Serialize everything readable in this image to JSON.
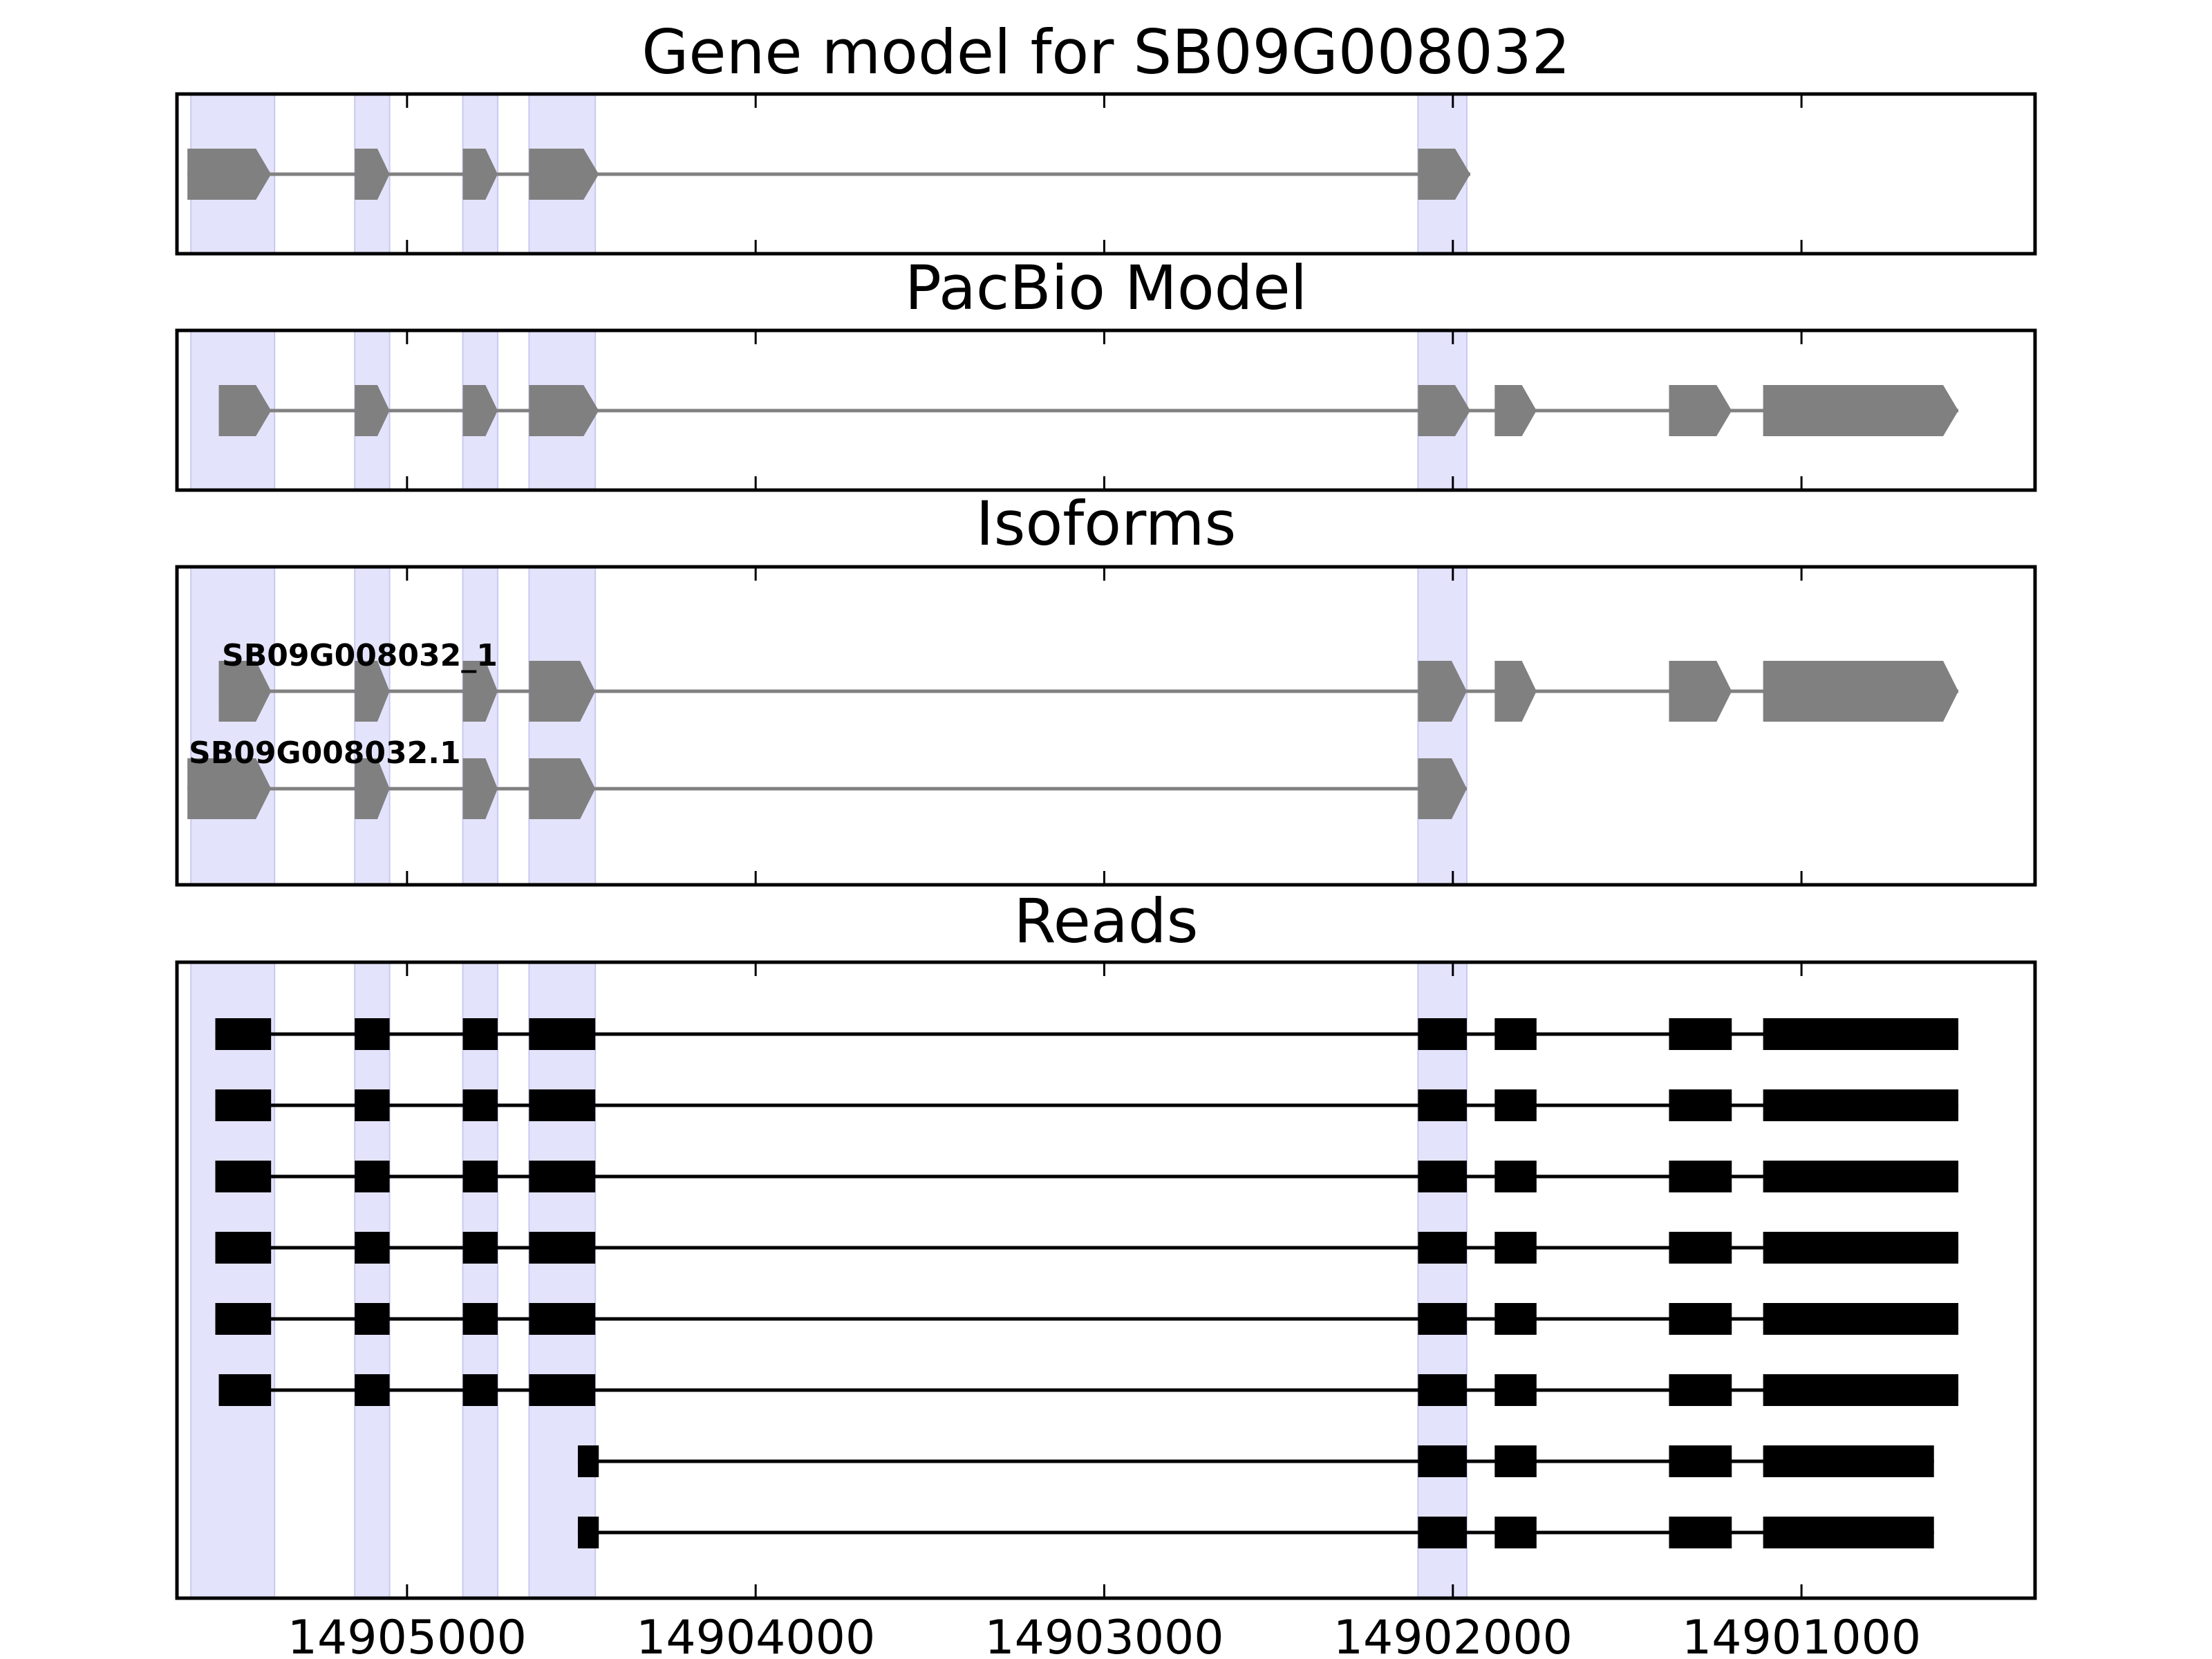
{
  "figure": {
    "panels": [
      {
        "id": "gene-model",
        "title": "Gene model for SB09G008032"
      },
      {
        "id": "pacbio-model",
        "title": "PacBio Model"
      },
      {
        "id": "isoforms",
        "title": "Isoforms"
      },
      {
        "id": "reads",
        "title": "Reads"
      }
    ],
    "x_axis": {
      "reversed": true,
      "range": [
        14905660,
        14900330
      ],
      "ticks": [
        14905000,
        14904000,
        14903000,
        14902000,
        14901000
      ],
      "tick_labels": [
        "14905000",
        "14904000",
        "14903000",
        "14902000",
        "14901000"
      ]
    },
    "highlight_color": "#e3e3fb",
    "exon_colors": {
      "model": "#808080",
      "read": "#000000"
    },
    "highlights": [
      [
        14905620,
        14905380
      ],
      [
        14905150,
        14905050
      ],
      [
        14904840,
        14904740
      ],
      [
        14904650,
        14904460
      ],
      [
        14902100,
        14901960
      ]
    ],
    "gene_model": {
      "exons": [
        [
          14905630,
          14905390
        ],
        [
          14905150,
          14905050
        ],
        [
          14904840,
          14904740
        ],
        [
          14904650,
          14904450
        ],
        [
          14902100,
          14901950
        ]
      ]
    },
    "pacbio_model": {
      "exons": [
        [
          14905540,
          14905390
        ],
        [
          14905150,
          14905050
        ],
        [
          14904840,
          14904740
        ],
        [
          14904650,
          14904450
        ],
        [
          14902100,
          14901950
        ],
        [
          14901880,
          14901760
        ],
        [
          14901380,
          14901200
        ],
        [
          14901110,
          14900550
        ]
      ]
    },
    "isoforms": [
      {
        "name": "SB09G008032_1",
        "exons": [
          [
            14905540,
            14905390
          ],
          [
            14905150,
            14905050
          ],
          [
            14904840,
            14904740
          ],
          [
            14904650,
            14904460
          ],
          [
            14902100,
            14901960
          ],
          [
            14901880,
            14901760
          ],
          [
            14901380,
            14901200
          ],
          [
            14901110,
            14900550
          ]
        ]
      },
      {
        "name": "SB09G008032.1",
        "exons": [
          [
            14905630,
            14905390
          ],
          [
            14905150,
            14905050
          ],
          [
            14904840,
            14904740
          ],
          [
            14904650,
            14904460
          ],
          [
            14902100,
            14901960
          ]
        ]
      }
    ],
    "reads": [
      [
        [
          14905550,
          14905390
        ],
        [
          14905150,
          14905050
        ],
        [
          14904840,
          14904740
        ],
        [
          14904650,
          14904460
        ],
        [
          14902100,
          14901960
        ],
        [
          14901880,
          14901760
        ],
        [
          14901380,
          14901200
        ],
        [
          14901110,
          14900550
        ]
      ],
      [
        [
          14905550,
          14905390
        ],
        [
          14905150,
          14905050
        ],
        [
          14904840,
          14904740
        ],
        [
          14904650,
          14904460
        ],
        [
          14902100,
          14901960
        ],
        [
          14901880,
          14901760
        ],
        [
          14901380,
          14901200
        ],
        [
          14901110,
          14900550
        ]
      ],
      [
        [
          14905550,
          14905390
        ],
        [
          14905150,
          14905050
        ],
        [
          14904840,
          14904740
        ],
        [
          14904650,
          14904460
        ],
        [
          14902100,
          14901960
        ],
        [
          14901880,
          14901760
        ],
        [
          14901380,
          14901200
        ],
        [
          14901110,
          14900550
        ]
      ],
      [
        [
          14905550,
          14905390
        ],
        [
          14905150,
          14905050
        ],
        [
          14904840,
          14904740
        ],
        [
          14904650,
          14904460
        ],
        [
          14902100,
          14901960
        ],
        [
          14901880,
          14901760
        ],
        [
          14901380,
          14901200
        ],
        [
          14901110,
          14900550
        ]
      ],
      [
        [
          14905550,
          14905390
        ],
        [
          14905150,
          14905050
        ],
        [
          14904840,
          14904740
        ],
        [
          14904650,
          14904460
        ],
        [
          14902100,
          14901960
        ],
        [
          14901880,
          14901760
        ],
        [
          14901380,
          14901200
        ],
        [
          14901110,
          14900550
        ]
      ],
      [
        [
          14905540,
          14905390
        ],
        [
          14905150,
          14905050
        ],
        [
          14904840,
          14904740
        ],
        [
          14904650,
          14904460
        ],
        [
          14902100,
          14901960
        ],
        [
          14901880,
          14901760
        ],
        [
          14901380,
          14901200
        ],
        [
          14901110,
          14900550
        ]
      ],
      [
        [
          14904510,
          14904450
        ],
        [
          14902100,
          14901960
        ],
        [
          14901880,
          14901760
        ],
        [
          14901380,
          14901200
        ],
        [
          14901110,
          14900620
        ]
      ],
      [
        [
          14904510,
          14904450
        ],
        [
          14902100,
          14901960
        ],
        [
          14901880,
          14901760
        ],
        [
          14901380,
          14901200
        ],
        [
          14901110,
          14900620
        ]
      ]
    ]
  }
}
